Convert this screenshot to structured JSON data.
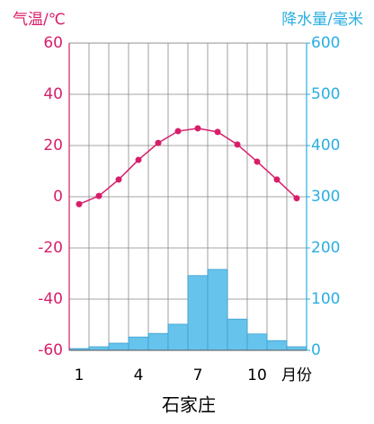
{
  "chart_data": {
    "type": "combo",
    "title": "石家庄",
    "y_label": "气温/℃",
    "y2_label": "降水量/毫米",
    "x_label": "月份",
    "categories": [
      "1",
      null,
      null,
      "4",
      null,
      null,
      "7",
      null,
      null,
      "10",
      null,
      null
    ],
    "ylim": [
      -60,
      60
    ],
    "yticks": [
      -60,
      -40,
      -20,
      0,
      20,
      40,
      60
    ],
    "y2lim": [
      0,
      600
    ],
    "y2ticks": [
      0,
      100,
      200,
      300,
      400,
      500,
      600
    ],
    "grid": true,
    "y_color": "#d81e6a",
    "y2_color": "#2aaee0",
    "series": [
      {
        "type": "bar",
        "axis": "y2",
        "color": "#66c3ec",
        "values": [
          3.5,
          7,
          14,
          26,
          33,
          51,
          146,
          158,
          61,
          32,
          19,
          7
        ]
      },
      {
        "type": "line",
        "color": "#d81e6a",
        "values": [
          -2.9,
          0.3,
          6.7,
          14.4,
          21,
          25.6,
          26.7,
          25.3,
          20.4,
          13.7,
          6.7,
          -0.6
        ]
      }
    ]
  }
}
